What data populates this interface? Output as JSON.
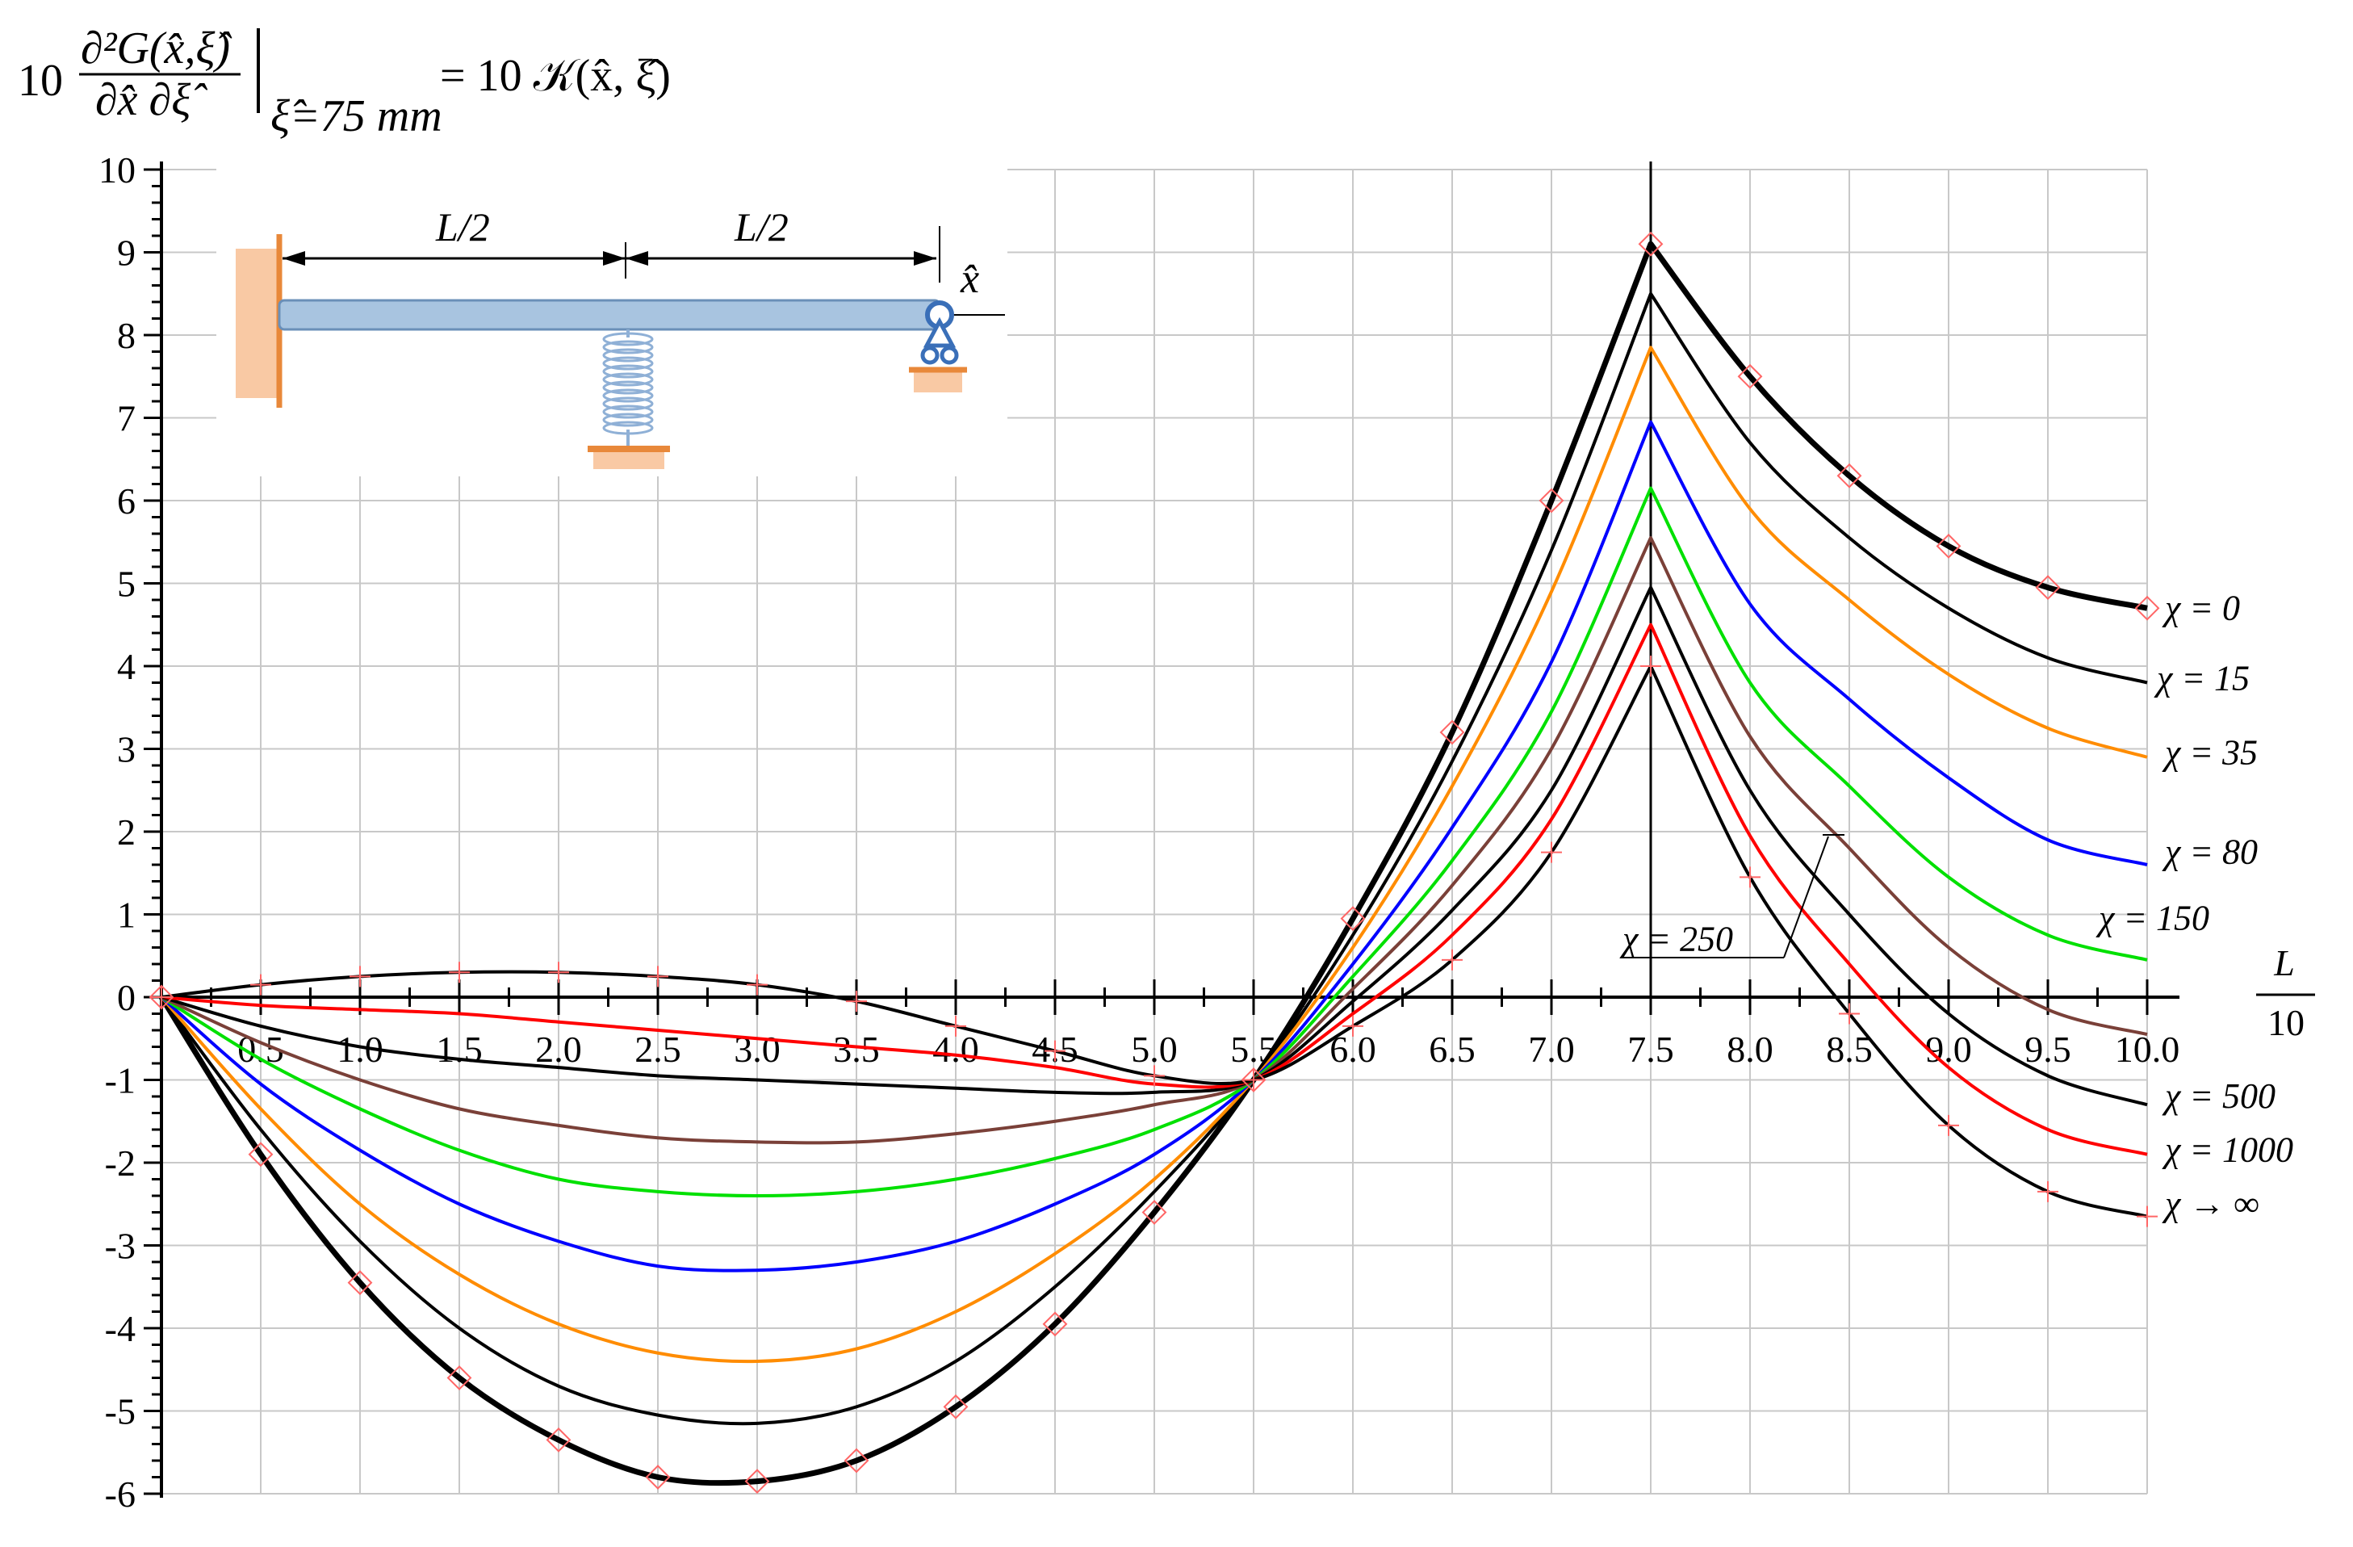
{
  "title": {
    "coef": "10",
    "numerator": "∂²G(x̂,ξ̂)",
    "denominator": "∂x̂ ∂ξ̂",
    "subscript": "ξ̂=75 mm",
    "rhs": "= 10 𝒦(x̂, ξ̂)"
  },
  "inset": {
    "left_span_label": "L/2",
    "right_span_label": "L/2",
    "coordinate_label": "x̂",
    "beam_color": "#a8c4e0",
    "support_color": "#e8883a",
    "ground_color": "#f9c9a4"
  },
  "chart_data": {
    "type": "line",
    "xlabel_numerator": "L",
    "xlabel_denominator": "10",
    "xlim": [
      0,
      10
    ],
    "ylim": [
      -6,
      10
    ],
    "x_tick_labels": [
      "0.5",
      "1.0",
      "1.5",
      "2.0",
      "2.5",
      "3.0",
      "3.5",
      "4.0",
      "4.5",
      "5.0",
      "5.5",
      "6.0",
      "6.5",
      "7.0",
      "7.5",
      "8.0",
      "8.5",
      "9.0",
      "9.5",
      "10.0"
    ],
    "y_tick_labels": [
      "10",
      "9",
      "8",
      "7",
      "6",
      "5",
      "4",
      "3",
      "2",
      "1",
      "0",
      "-1",
      "-2",
      "-3",
      "-4",
      "-5",
      "-6"
    ],
    "grid": true,
    "x": [
      0,
      0.5,
      1.0,
      1.5,
      2.0,
      2.5,
      3.0,
      3.5,
      4.0,
      4.5,
      5.0,
      5.5,
      6.0,
      6.5,
      7.0,
      7.5,
      8.0,
      8.5,
      9.0,
      9.5,
      10.0
    ],
    "series": [
      {
        "name": "χ = 0",
        "color": "#000000",
        "width": 7,
        "values": [
          0,
          -1.9,
          -3.45,
          -4.6,
          -5.35,
          -5.8,
          -5.85,
          -5.6,
          -4.95,
          -3.95,
          -2.6,
          -1.0,
          0.95,
          3.2,
          6.0,
          9.1,
          7.5,
          6.3,
          5.45,
          4.95,
          4.7
        ]
      },
      {
        "name": "χ = 15",
        "color": "#000000",
        "width": 4,
        "values": [
          0,
          -1.6,
          -2.95,
          -4.0,
          -4.7,
          -5.05,
          -5.15,
          -4.95,
          -4.4,
          -3.5,
          -2.35,
          -1.0,
          0.75,
          2.85,
          5.4,
          8.5,
          6.7,
          5.55,
          4.7,
          4.1,
          3.8
        ]
      },
      {
        "name": "χ = 35",
        "color": "#ff8c00",
        "width": 4,
        "values": [
          0,
          -1.35,
          -2.5,
          -3.35,
          -3.95,
          -4.3,
          -4.4,
          -4.25,
          -3.8,
          -3.1,
          -2.2,
          -1.0,
          0.6,
          2.55,
          4.9,
          7.85,
          5.9,
          4.8,
          3.9,
          3.25,
          2.9
        ]
      },
      {
        "name": "χ = 80",
        "color": "#0000ff",
        "width": 4,
        "values": [
          0,
          -1.05,
          -1.85,
          -2.5,
          -2.95,
          -3.25,
          -3.3,
          -3.2,
          -2.95,
          -2.5,
          -1.9,
          -1.0,
          0.4,
          2.05,
          4.05,
          6.95,
          4.75,
          3.6,
          2.65,
          1.9,
          1.6
        ]
      },
      {
        "name": "χ = 150",
        "color": "#00e000",
        "width": 4,
        "values": [
          0,
          -0.75,
          -1.35,
          -1.85,
          -2.2,
          -2.35,
          -2.4,
          -2.35,
          -2.2,
          -1.95,
          -1.6,
          -1.0,
          0.25,
          1.65,
          3.45,
          6.15,
          3.8,
          2.55,
          1.45,
          0.75,
          0.45
        ]
      },
      {
        "name": "χ = 250",
        "color": "#7a4038",
        "width": 4,
        "values": [
          0,
          -0.55,
          -1.0,
          -1.35,
          -1.55,
          -1.7,
          -1.75,
          -1.75,
          -1.65,
          -1.5,
          -1.3,
          -1.0,
          0.1,
          1.35,
          3.0,
          5.55,
          3.15,
          1.8,
          0.6,
          -0.15,
          -0.45
        ]
      },
      {
        "name": "χ = 500",
        "color": "#000000",
        "width": 4,
        "values": [
          0,
          -0.35,
          -0.6,
          -0.75,
          -0.85,
          -0.95,
          -1.0,
          -1.05,
          -1.1,
          -1.15,
          -1.15,
          -1.0,
          -0.05,
          1.05,
          2.5,
          4.95,
          2.5,
          1.0,
          -0.2,
          -0.95,
          -1.3
        ]
      },
      {
        "name": "χ = 1000",
        "color": "#ff0000",
        "width": 4,
        "values": [
          0,
          -0.1,
          -0.15,
          -0.2,
          -0.3,
          -0.4,
          -0.5,
          -0.6,
          -0.7,
          -0.85,
          -1.05,
          -1.0,
          -0.2,
          0.75,
          2.15,
          4.5,
          1.95,
          0.4,
          -0.85,
          -1.6,
          -1.9
        ]
      },
      {
        "name": "χ → ∞",
        "color": "#000000",
        "width": 4,
        "values": [
          0,
          0.15,
          0.25,
          0.3,
          0.3,
          0.25,
          0.15,
          -0.05,
          -0.35,
          -0.65,
          -0.95,
          -1.0,
          -0.35,
          0.45,
          1.75,
          4.0,
          1.45,
          -0.2,
          -1.55,
          -2.35,
          -2.65
        ]
      }
    ],
    "curve_labels": [
      {
        "text": "χ = 0",
        "y": 4.7
      },
      {
        "text": "χ = 15",
        "y": 3.85
      },
      {
        "text": "χ = 35",
        "y": 2.95
      },
      {
        "text": "χ = 80",
        "y": 1.75
      },
      {
        "text": "χ = 150",
        "y": 0.95
      },
      {
        "text": "χ = 250",
        "y": 0.7
      },
      {
        "text": "χ = 500",
        "y": -1.2
      },
      {
        "text": "χ = 1000",
        "y": -1.85
      },
      {
        "text": "χ → ∞",
        "y": -2.5
      }
    ],
    "markers": {
      "diamond_color": "#ff6666",
      "plus_color": "#ff6666",
      "diamond_x": [
        0,
        0.5,
        1.0,
        1.5,
        2.0,
        2.5,
        3.0,
        3.5,
        4.0,
        4.5,
        5.0,
        5.5,
        6.0,
        6.5,
        7.0,
        7.5,
        8.0,
        8.5,
        9.0,
        9.5,
        10.0
      ],
      "plus_x": [
        0,
        0.5,
        1.0,
        1.5,
        2.0,
        2.5,
        3.0,
        3.5,
        4.0,
        4.5,
        5.0,
        5.5,
        6.0,
        6.5,
        7.0,
        7.5,
        8.0,
        8.5,
        9.0,
        9.5,
        10.0
      ]
    }
  }
}
